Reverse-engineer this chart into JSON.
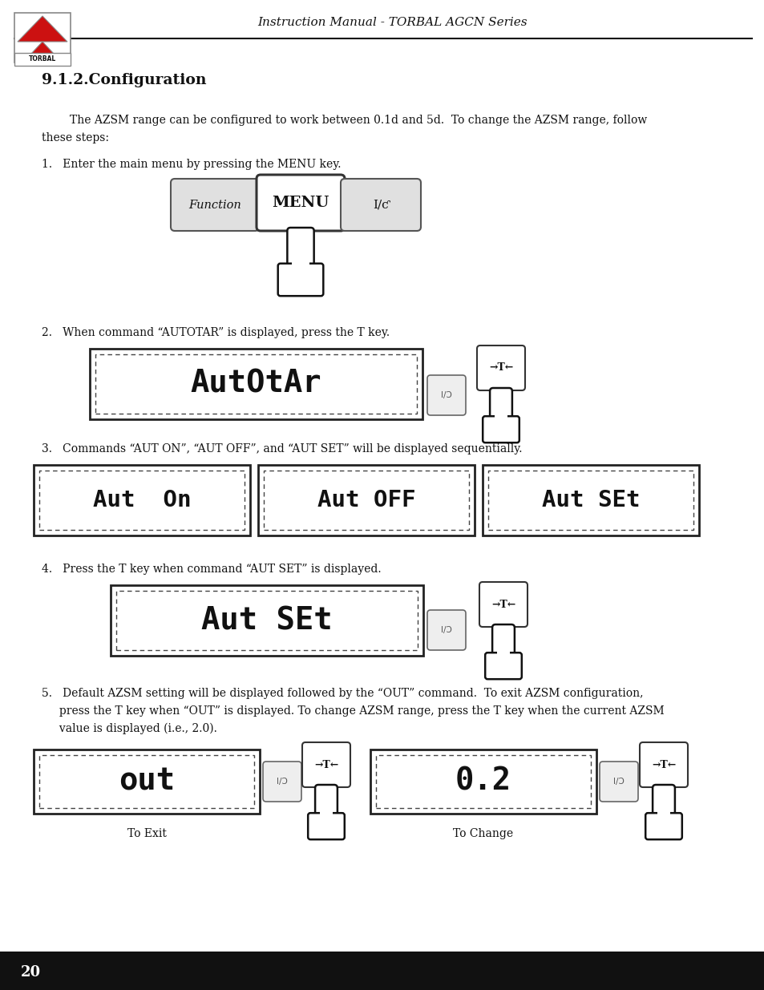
{
  "header_text": "Instruction Manual - TORBAL AGCN Series",
  "page_number": "20",
  "section_title": "9.1.2.Configuration",
  "intro_line1": "        The AZSM range can be configured to work between 0.1d and 5d.  To change the AZSM range, follow",
  "intro_line2": "these steps:",
  "step1": "1.   Enter the main menu by pressing the MENU key.",
  "step2": "2.   When command “AUTOTAR” is displayed, press the T key.",
  "step3": "3.   Commands “AUT ON”, “AUT OFF”, and “AUT SET” will be displayed sequentially.",
  "step4": "4.   Press the T key when command “AUT SET” is displayed.",
  "step5_line1": "5.   Default AZSM setting will be displayed followed by the “OUT” command.  To exit AZSM configuration,",
  "step5_line2": "     press the T key when “OUT” is displayed. To change AZSM range, press the T key when the current AZSM",
  "step5_line3": "     value is displayed (i.e., 2.0).",
  "label_exit": "To Exit",
  "label_change": "To Change",
  "bg_color": "#ffffff",
  "text_color": "#111111",
  "torbal_red": "#cc1111",
  "page_bar_color": "#111111"
}
